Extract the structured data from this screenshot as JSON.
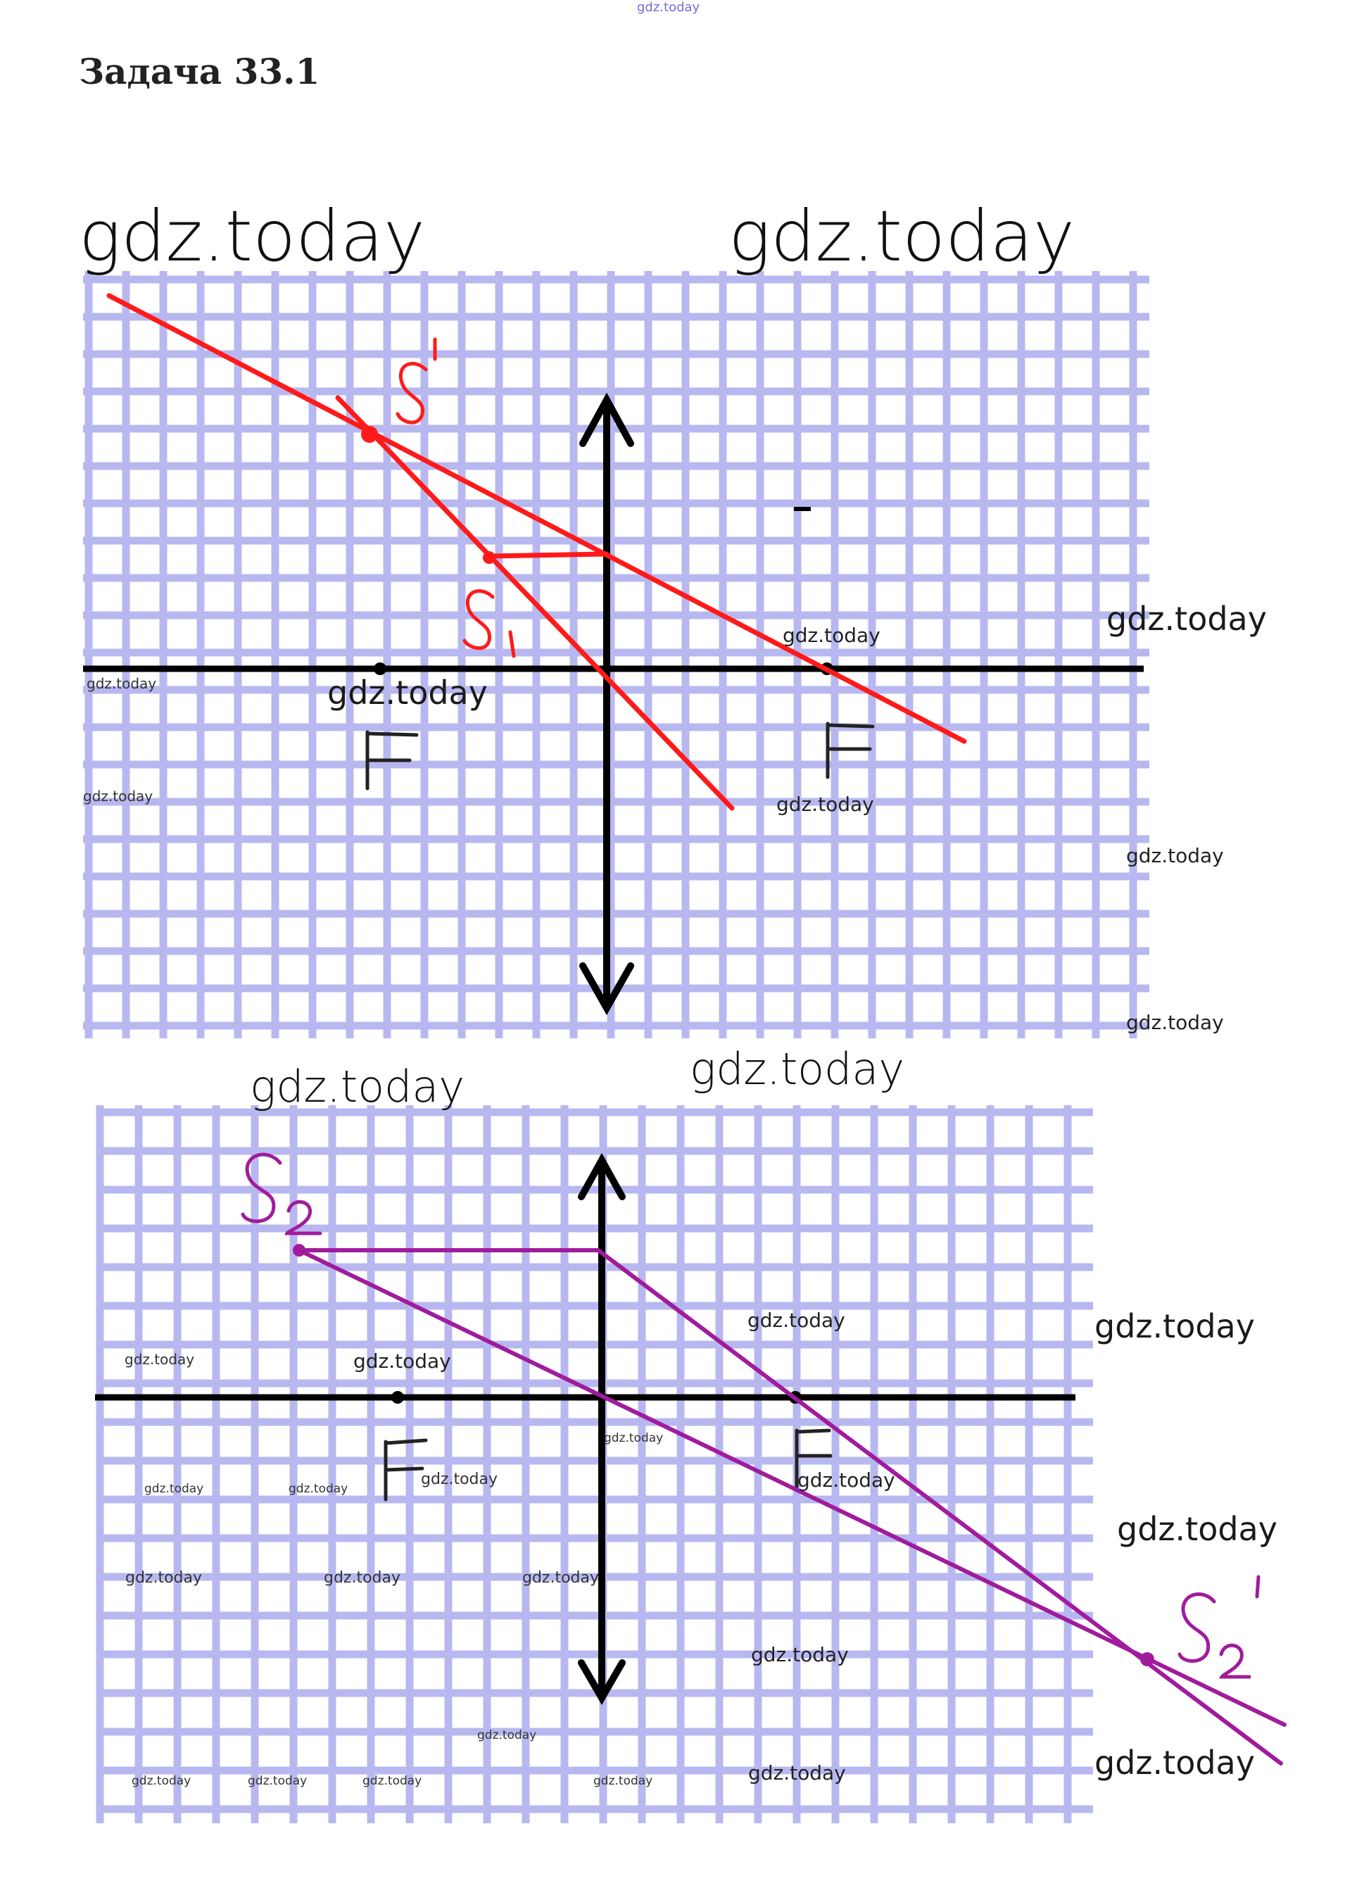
{
  "header": {
    "site_mark": "gdz.today",
    "title": "Задача 33.1"
  },
  "watermark": "gdz.today",
  "colors": {
    "grid": "#b8b8f0",
    "axis": "#000000",
    "ray_top": "#ff1a1a",
    "ray_bottom": "#a01c9c"
  },
  "diagram_top": {
    "focus_left": "F",
    "focus_right": "F",
    "source_label": "S",
    "source_subscript": "1",
    "image_label": "S",
    "image_prime": "1"
  },
  "diagram_bottom": {
    "focus_left": "F",
    "focus_right": "F",
    "source_label": "S",
    "source_subscript": "2",
    "image_label": "S",
    "image_subscript": "2",
    "image_prime": "1"
  }
}
